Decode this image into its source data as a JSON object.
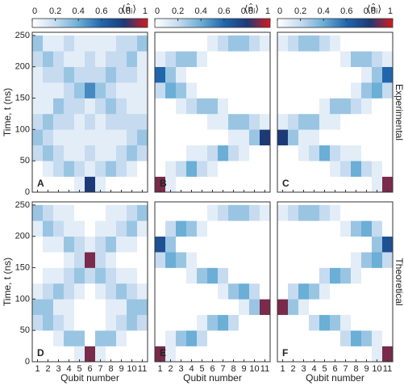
{
  "colorbar": {
    "ticks": [
      0,
      0.2,
      0.4,
      0.6,
      0.8,
      1
    ],
    "label": "⟨n̂ⱼ⟩",
    "colors": [
      "#ffffff",
      "#c6dbef",
      "#6baed6",
      "#2166ac",
      "#1c3a78",
      "#d7191c"
    ]
  },
  "chart_data": [
    {
      "type": "heatmap",
      "panel": "A",
      "y_label": "Time, t (ns)",
      "categories": [
        1,
        2,
        3,
        4,
        5,
        6,
        7,
        8,
        9,
        10,
        11
      ],
      "y_edges": [
        0,
        25,
        50,
        75,
        100,
        125,
        150,
        175,
        200,
        225,
        250
      ],
      "ylim": [
        0,
        255
      ],
      "yticks": [
        0,
        50,
        100,
        150,
        200,
        250
      ],
      "values": [
        [
          0,
          0,
          0,
          0,
          0.1,
          0.8,
          0.1,
          0,
          0,
          0,
          0
        ],
        [
          0,
          0.1,
          0.2,
          0.3,
          0.2,
          0.1,
          0.2,
          0.3,
          0.2,
          0.1,
          0
        ],
        [
          0.2,
          0.3,
          0.2,
          0.1,
          0.1,
          0.2,
          0.1,
          0.1,
          0.2,
          0.3,
          0.2
        ],
        [
          0.3,
          0.2,
          0.1,
          0.1,
          0.1,
          0.1,
          0.1,
          0.1,
          0.1,
          0.2,
          0.3
        ],
        [
          0.2,
          0.3,
          0.2,
          0.2,
          0.1,
          0.2,
          0.1,
          0.2,
          0.2,
          0.2,
          0.2
        ],
        [
          0.1,
          0.1,
          0.3,
          0.2,
          0.2,
          0.1,
          0.2,
          0.3,
          0.2,
          0.1,
          0.1
        ],
        [
          0.1,
          0.1,
          0.1,
          0.2,
          0.3,
          0.5,
          0.3,
          0.2,
          0.1,
          0.1,
          0.1
        ],
        [
          0.1,
          0.2,
          0.2,
          0.3,
          0.2,
          0.2,
          0.2,
          0.3,
          0.2,
          0.2,
          0.1
        ],
        [
          0.2,
          0.3,
          0.2,
          0.1,
          0.1,
          0.2,
          0.1,
          0.2,
          0.2,
          0.3,
          0.1
        ],
        [
          0.3,
          0.1,
          0.1,
          0.2,
          0.1,
          0.1,
          0.1,
          0.1,
          0.2,
          0.2,
          0.3
        ]
      ]
    },
    {
      "type": "heatmap",
      "panel": "B",
      "categories": [
        1,
        2,
        3,
        4,
        5,
        6,
        7,
        8,
        9,
        10,
        11
      ],
      "y_edges": [
        0,
        25,
        50,
        75,
        100,
        125,
        150,
        175,
        200,
        225,
        250
      ],
      "ylim": [
        0,
        255
      ],
      "values": [
        [
          0.9,
          0.1,
          0,
          0,
          0,
          0,
          0,
          0,
          0,
          0,
          0
        ],
        [
          0,
          0.1,
          0.2,
          0.4,
          0.2,
          0.1,
          0,
          0,
          0,
          0,
          0
        ],
        [
          0,
          0,
          0,
          0.1,
          0.1,
          0.2,
          0.4,
          0.2,
          0.1,
          0,
          0
        ],
        [
          0,
          0,
          0,
          0,
          0,
          0,
          0,
          0.1,
          0.1,
          0.3,
          0.8
        ],
        [
          0,
          0,
          0,
          0,
          0,
          0.1,
          0.1,
          0.3,
          0.3,
          0.2,
          0.1
        ],
        [
          0,
          0,
          0.1,
          0.2,
          0.3,
          0.3,
          0.1,
          0,
          0,
          0,
          0
        ],
        [
          0.2,
          0.4,
          0.3,
          0.1,
          0,
          0,
          0,
          0,
          0,
          0,
          0
        ],
        [
          0.6,
          0.3,
          0.1,
          0,
          0,
          0,
          0,
          0,
          0,
          0,
          0
        ],
        [
          0.1,
          0.2,
          0.3,
          0.3,
          0.1,
          0,
          0,
          0,
          0,
          0,
          0
        ],
        [
          0,
          0,
          0,
          0,
          0,
          0.1,
          0.2,
          0.3,
          0.3,
          0.2,
          0.1
        ]
      ]
    },
    {
      "type": "heatmap",
      "panel": "C",
      "side_label": "Experimental",
      "categories": [
        1,
        2,
        3,
        4,
        5,
        6,
        7,
        8,
        9,
        10,
        11
      ],
      "y_edges": [
        0,
        25,
        50,
        75,
        100,
        125,
        150,
        175,
        200,
        225,
        250
      ],
      "ylim": [
        0,
        255
      ],
      "values": [
        [
          0,
          0,
          0,
          0,
          0,
          0,
          0,
          0,
          0,
          0.1,
          0.9
        ],
        [
          0,
          0,
          0,
          0,
          0,
          0.1,
          0.2,
          0.4,
          0.2,
          0.1,
          0
        ],
        [
          0,
          0,
          0.1,
          0.2,
          0.4,
          0.2,
          0.1,
          0.1,
          0,
          0,
          0
        ],
        [
          0.8,
          0.3,
          0.1,
          0.1,
          0,
          0,
          0,
          0,
          0,
          0,
          0
        ],
        [
          0.1,
          0.2,
          0.3,
          0.3,
          0.1,
          0.1,
          0,
          0,
          0,
          0,
          0
        ],
        [
          0,
          0,
          0,
          0,
          0.1,
          0.3,
          0.3,
          0.2,
          0.1,
          0,
          0
        ],
        [
          0,
          0,
          0,
          0,
          0,
          0,
          0,
          0.1,
          0.3,
          0.4,
          0.2
        ],
        [
          0,
          0,
          0,
          0,
          0,
          0,
          0,
          0,
          0.1,
          0.3,
          0.6
        ],
        [
          0,
          0,
          0,
          0,
          0,
          0,
          0.1,
          0.3,
          0.3,
          0.2,
          0.1
        ],
        [
          0.1,
          0.2,
          0.3,
          0.3,
          0.2,
          0.1,
          0,
          0,
          0,
          0,
          0
        ]
      ]
    },
    {
      "type": "heatmap",
      "panel": "D",
      "y_label": "Time, t (ns)",
      "x_label": "Qubit number",
      "categories": [
        1,
        2,
        3,
        4,
        5,
        6,
        7,
        8,
        9,
        10,
        11
      ],
      "y_edges": [
        0,
        25,
        50,
        75,
        100,
        125,
        150,
        175,
        200,
        225,
        250
      ],
      "ylim": [
        0,
        255
      ],
      "yticks": [
        0,
        50,
        100,
        150,
        200,
        250
      ],
      "values": [
        [
          0,
          0,
          0,
          0,
          0.1,
          0.9,
          0.1,
          0,
          0,
          0,
          0
        ],
        [
          0,
          0,
          0.1,
          0.3,
          0.3,
          0,
          0.3,
          0.3,
          0.1,
          0,
          0
        ],
        [
          0.2,
          0.3,
          0.2,
          0.1,
          0,
          0,
          0,
          0.1,
          0.2,
          0.3,
          0.2
        ],
        [
          0.3,
          0.3,
          0.1,
          0.1,
          0,
          0,
          0,
          0.1,
          0.1,
          0.3,
          0.3
        ],
        [
          0.1,
          0.2,
          0.3,
          0.2,
          0.1,
          0,
          0.1,
          0.2,
          0.3,
          0.2,
          0.1
        ],
        [
          0,
          0.1,
          0.1,
          0.2,
          0.3,
          0.2,
          0.3,
          0.2,
          0.1,
          0.1,
          0
        ],
        [
          0,
          0,
          0,
          0.1,
          0.2,
          0.9,
          0.2,
          0.1,
          0,
          0,
          0
        ],
        [
          0,
          0.1,
          0.1,
          0.3,
          0.2,
          0.1,
          0.2,
          0.3,
          0.1,
          0.1,
          0
        ],
        [
          0.1,
          0.3,
          0.2,
          0.1,
          0.1,
          0,
          0.1,
          0.1,
          0.2,
          0.3,
          0.1
        ],
        [
          0.3,
          0.2,
          0.1,
          0.1,
          0,
          0,
          0,
          0.1,
          0.1,
          0.2,
          0.3
        ]
      ]
    },
    {
      "type": "heatmap",
      "panel": "E",
      "x_label": "Qubit number",
      "categories": [
        1,
        2,
        3,
        4,
        5,
        6,
        7,
        8,
        9,
        10,
        11
      ],
      "y_edges": [
        0,
        25,
        50,
        75,
        100,
        125,
        150,
        175,
        200,
        225,
        250
      ],
      "ylim": [
        0,
        255
      ],
      "values": [
        [
          0.9,
          0.1,
          0,
          0,
          0,
          0,
          0,
          0,
          0,
          0,
          0
        ],
        [
          0,
          0.1,
          0.3,
          0.4,
          0.2,
          0,
          0,
          0,
          0,
          0,
          0
        ],
        [
          0,
          0,
          0,
          0,
          0.1,
          0.3,
          0.4,
          0.2,
          0,
          0,
          0
        ],
        [
          0,
          0,
          0,
          0,
          0,
          0,
          0,
          0,
          0.1,
          0.3,
          0.9
        ],
        [
          0,
          0,
          0,
          0,
          0,
          0,
          0.1,
          0.3,
          0.4,
          0.2,
          0
        ],
        [
          0,
          0,
          0,
          0.1,
          0.3,
          0.4,
          0.2,
          0,
          0,
          0,
          0
        ],
        [
          0.2,
          0.4,
          0.3,
          0.1,
          0,
          0,
          0,
          0,
          0,
          0,
          0
        ],
        [
          0.7,
          0.3,
          0,
          0,
          0,
          0,
          0,
          0,
          0,
          0,
          0
        ],
        [
          0,
          0.2,
          0.4,
          0.3,
          0.1,
          0,
          0,
          0,
          0,
          0,
          0
        ],
        [
          0,
          0,
          0,
          0,
          0,
          0.1,
          0.2,
          0.3,
          0.3,
          0.2,
          0.1
        ]
      ]
    },
    {
      "type": "heatmap",
      "panel": "F",
      "side_label": "Theoretical",
      "x_label": "Qubit number",
      "categories": [
        1,
        2,
        3,
        4,
        5,
        6,
        7,
        8,
        9,
        10,
        11
      ],
      "y_edges": [
        0,
        25,
        50,
        75,
        100,
        125,
        150,
        175,
        200,
        225,
        250
      ],
      "ylim": [
        0,
        255
      ],
      "values": [
        [
          0,
          0,
          0,
          0,
          0,
          0,
          0,
          0,
          0,
          0.1,
          0.9
        ],
        [
          0,
          0,
          0,
          0,
          0,
          0,
          0.2,
          0.4,
          0.3,
          0.1,
          0
        ],
        [
          0,
          0,
          0,
          0.2,
          0.4,
          0.3,
          0.1,
          0,
          0,
          0,
          0
        ],
        [
          0.9,
          0.3,
          0.1,
          0,
          0,
          0,
          0,
          0,
          0,
          0,
          0
        ],
        [
          0,
          0.2,
          0.4,
          0.3,
          0.1,
          0,
          0,
          0,
          0,
          0,
          0
        ],
        [
          0,
          0,
          0,
          0,
          0.2,
          0.4,
          0.3,
          0.1,
          0,
          0,
          0
        ],
        [
          0,
          0,
          0,
          0,
          0,
          0,
          0,
          0.1,
          0.3,
          0.4,
          0.2
        ],
        [
          0,
          0,
          0,
          0,
          0,
          0,
          0,
          0,
          0,
          0.3,
          0.7
        ],
        [
          0,
          0,
          0,
          0,
          0,
          0,
          0.1,
          0.3,
          0.4,
          0.2,
          0
        ],
        [
          0.1,
          0.2,
          0.3,
          0.3,
          0.2,
          0.1,
          0,
          0,
          0,
          0,
          0
        ]
      ]
    }
  ]
}
